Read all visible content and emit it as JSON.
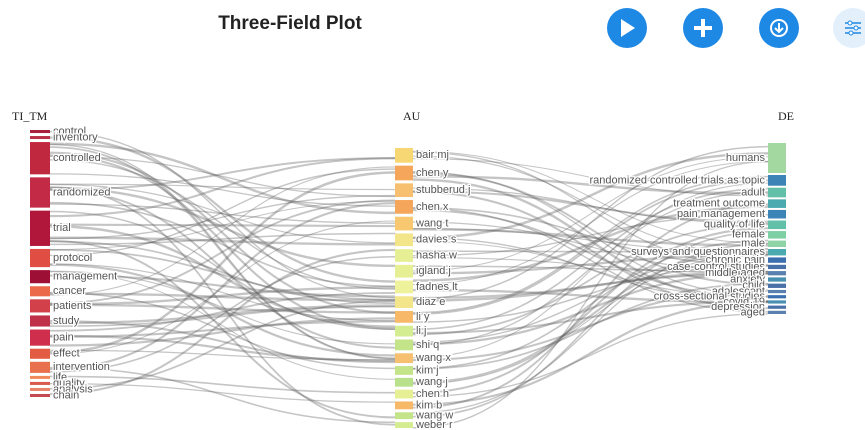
{
  "title": "Three-Field Plot",
  "columns": [
    {
      "header": "TI_TM",
      "nodes": [
        {
          "label": "control",
          "value": 3,
          "color": "#a8203f"
        },
        {
          "label": "inventory",
          "value": 3,
          "color": "#b8334a"
        },
        {
          "label": "controlled",
          "value": 32,
          "color": "#c0283f"
        },
        {
          "label": "randomized",
          "value": 30,
          "color": "#c32a45"
        },
        {
          "label": "trial",
          "value": 35,
          "color": "#b1173a"
        },
        {
          "label": "protocol",
          "value": 18,
          "color": "#df4d43"
        },
        {
          "label": "management",
          "value": 13,
          "color": "#9e0f35"
        },
        {
          "label": "cancer",
          "value": 10,
          "color": "#ea6a4a"
        },
        {
          "label": "patients",
          "value": 13,
          "color": "#d2404a"
        },
        {
          "label": "study",
          "value": 11,
          "color": "#c0304a"
        },
        {
          "label": "pain",
          "value": 16,
          "color": "#cf2e4c"
        },
        {
          "label": "effect",
          "value": 10,
          "color": "#e45b43"
        },
        {
          "label": "intervention",
          "value": 11,
          "color": "#e8704c"
        },
        {
          "label": "life",
          "value": 3,
          "color": "#f08a5a"
        },
        {
          "label": "quality",
          "value": 3,
          "color": "#d95a4c"
        },
        {
          "label": "analysis",
          "value": 3,
          "color": "#e8836a"
        },
        {
          "label": "chain",
          "value": 3,
          "color": "#c44a52"
        }
      ]
    },
    {
      "header": "AU",
      "nodes": [
        {
          "label": "bair mj",
          "value": 15,
          "color": "#f7d774"
        },
        {
          "label": "chen y",
          "value": 15,
          "color": "#f5a65b"
        },
        {
          "label": "stubberud j",
          "value": 14,
          "color": "#f7c070"
        },
        {
          "label": "chen x",
          "value": 14,
          "color": "#f5a65b"
        },
        {
          "label": "wang t",
          "value": 14,
          "color": "#f7c870"
        },
        {
          "label": "davies s",
          "value": 13,
          "color": "#f3e58a"
        },
        {
          "label": "hasha w",
          "value": 13,
          "color": "#e6ef94"
        },
        {
          "label": "igland j",
          "value": 13,
          "color": "#e6ef94"
        },
        {
          "label": "fadnes lt",
          "value": 13,
          "color": "#eef29a"
        },
        {
          "label": "diaz e",
          "value": 12,
          "color": "#f3e58a"
        },
        {
          "label": "li y",
          "value": 12,
          "color": "#f7b868"
        },
        {
          "label": "li j",
          "value": 11,
          "color": "#d4ed91"
        },
        {
          "label": "shi q",
          "value": 11,
          "color": "#c4e48a"
        },
        {
          "label": "wang x",
          "value": 10,
          "color": "#f7c070"
        },
        {
          "label": "kim j",
          "value": 9,
          "color": "#c4e48a"
        },
        {
          "label": "wang j",
          "value": 9,
          "color": "#b9e08a"
        },
        {
          "label": "chen h",
          "value": 9,
          "color": "#e6ef94"
        },
        {
          "label": "kim b",
          "value": 8,
          "color": "#f7b868"
        },
        {
          "label": "wang w",
          "value": 7,
          "color": "#c4e48a"
        },
        {
          "label": "weber r",
          "value": 6,
          "color": "#d4ed91"
        }
      ]
    },
    {
      "header": "DE",
      "nodes": [
        {
          "label": "humans",
          "value": 28,
          "color": "#a3d9a0"
        },
        {
          "label": "randomized controlled trials as topic",
          "value": 10,
          "color": "#3b84b5"
        },
        {
          "label": "adult",
          "value": 9,
          "color": "#62c0a8"
        },
        {
          "label": "treatment outcome",
          "value": 8,
          "color": "#4aaab0"
        },
        {
          "label": "pain management",
          "value": 8,
          "color": "#3b84b5"
        },
        {
          "label": "quality of life",
          "value": 8,
          "color": "#62c0a8"
        },
        {
          "label": "female",
          "value": 7,
          "color": "#7fcfa4"
        },
        {
          "label": "male",
          "value": 6,
          "color": "#8ed4a6"
        },
        {
          "label": "surveys and questionnaires",
          "value": 6,
          "color": "#4aaab0"
        },
        {
          "label": "chronic pain",
          "value": 5,
          "color": "#3b6fae"
        },
        {
          "label": "case-control studies",
          "value": 4,
          "color": "#4a70a8"
        },
        {
          "label": "middle aged",
          "value": 4,
          "color": "#5a80b0"
        },
        {
          "label": "anxiety",
          "value": 4,
          "color": "#4a90b0"
        },
        {
          "label": "child",
          "value": 4,
          "color": "#4a70a8"
        },
        {
          "label": "adolescent",
          "value": 3,
          "color": "#5a80b0"
        },
        {
          "label": "cross-sectional studies",
          "value": 3,
          "color": "#3b6fae"
        },
        {
          "label": "covid-19",
          "value": 3,
          "color": "#4a90b0"
        },
        {
          "label": "depression",
          "value": 3,
          "color": "#4a70a8"
        },
        {
          "label": "aged",
          "value": 3,
          "color": "#5a80b0"
        }
      ]
    }
  ]
}
